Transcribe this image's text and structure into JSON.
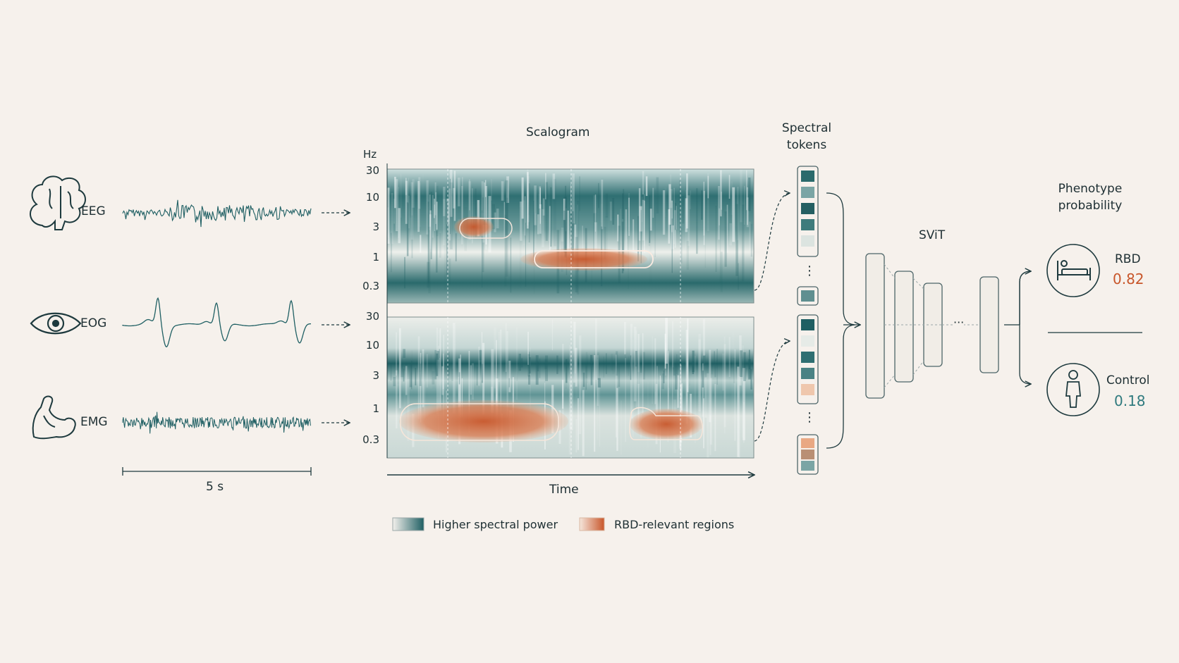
{
  "signals": {
    "eeg": "EEG",
    "eog": "EOG",
    "emg": "EMG",
    "scale": "5 s"
  },
  "scalogram": {
    "title": "Scalogram",
    "unit": "Hz",
    "ticks": [
      "30",
      "10",
      "3",
      "1",
      "0.3"
    ],
    "xlabel": "Time"
  },
  "tokens": {
    "title_line1": "Spectral",
    "title_line2": "tokens",
    "ellipsis": "⋮"
  },
  "model": {
    "name": "SViT",
    "ellipsis": "···"
  },
  "output": {
    "title_line1": "Phenotype",
    "title_line2": "probability",
    "rbd_label": "RBD",
    "rbd_value": "0.82",
    "control_label": "Control",
    "control_value": "0.18"
  },
  "legend": {
    "power": "Higher spectral power",
    "rbd": "RBD-relevant regions"
  },
  "colors": {
    "teal": "#1f5f63",
    "orange": "#c8562a",
    "background": "#f6f1ec"
  },
  "icons": {
    "eeg": "brain-icon",
    "eog": "eye-icon",
    "emg": "muscle-arm-icon",
    "rbd": "bed-person-icon",
    "control": "standing-person-icon"
  }
}
